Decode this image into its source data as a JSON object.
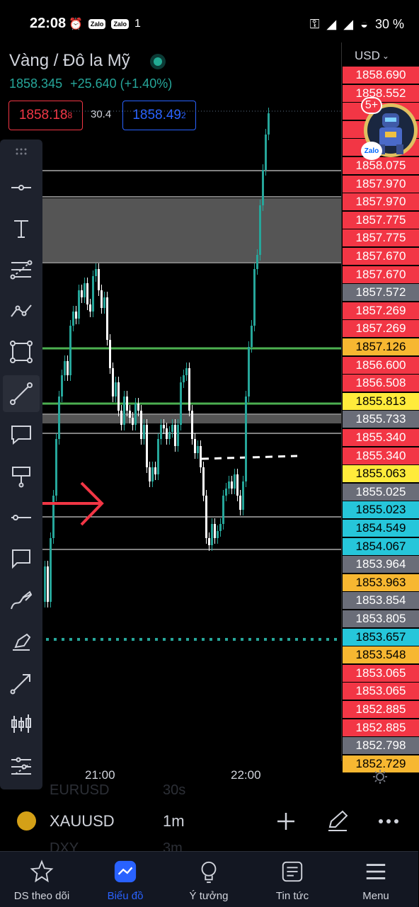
{
  "status_bar": {
    "time": "22:08",
    "extra_icons": [
      "Zalo",
      "Zalo"
    ],
    "signal_digit": "1",
    "battery": "30 %"
  },
  "header": {
    "symbol_name": "Vàng / Đô la Mỹ",
    "last_price": "1858.345",
    "change": "+25.640 (+1.40%)",
    "sell_price": "1858.18",
    "sell_price_sup": "8",
    "spread": "30.4",
    "buy_price": "1858.49",
    "buy_price_sup": "2"
  },
  "price_scale": {
    "currency": "USD",
    "labels": [
      {
        "text": "1858.690",
        "bg": "#f23645",
        "fg": "#ffffff"
      },
      {
        "text": "1858.552",
        "bg": "#f23645",
        "fg": "#ffffff"
      },
      {
        "text": "18",
        "bg": "#f23645",
        "fg": "#ffffff"
      },
      {
        "text": "0",
        "bg": "#f23645",
        "fg": "#ffffff"
      },
      {
        "text": "1",
        "bg": "#f23645",
        "fg": "#ffffff"
      },
      {
        "text": "1858.075",
        "bg": "#f23645",
        "fg": "#ffffff"
      },
      {
        "text": "1857.970",
        "bg": "#f23645",
        "fg": "#ffffff"
      },
      {
        "text": "1857.970",
        "bg": "#f23645",
        "fg": "#ffffff"
      },
      {
        "text": "1857.775",
        "bg": "#f23645",
        "fg": "#ffffff"
      },
      {
        "text": "1857.775",
        "bg": "#f23645",
        "fg": "#ffffff"
      },
      {
        "text": "1857.670",
        "bg": "#f23645",
        "fg": "#ffffff"
      },
      {
        "text": "1857.670",
        "bg": "#f23645",
        "fg": "#ffffff"
      },
      {
        "text": "1857.572",
        "bg": "#6a6d78",
        "fg": "#ffffff"
      },
      {
        "text": "1857.269",
        "bg": "#f23645",
        "fg": "#ffffff"
      },
      {
        "text": "1857.269",
        "bg": "#f23645",
        "fg": "#ffffff"
      },
      {
        "text": "1857.126",
        "bg": "#f7b731",
        "fg": "#000000"
      },
      {
        "text": "1856.600",
        "bg": "#f23645",
        "fg": "#ffffff"
      },
      {
        "text": "1856.508",
        "bg": "#f23645",
        "fg": "#ffffff"
      },
      {
        "text": "1855.813",
        "bg": "#ffeb3b",
        "fg": "#000000"
      },
      {
        "text": "1855.733",
        "bg": "#6a6d78",
        "fg": "#ffffff"
      },
      {
        "text": "1855.340",
        "bg": "#f23645",
        "fg": "#ffffff"
      },
      {
        "text": "1855.340",
        "bg": "#f23645",
        "fg": "#ffffff"
      },
      {
        "text": "1855.063",
        "bg": "#ffeb3b",
        "fg": "#000000"
      },
      {
        "text": "1855.025",
        "bg": "#6a6d78",
        "fg": "#ffffff"
      },
      {
        "text": "1855.023",
        "bg": "#26c6da",
        "fg": "#000000"
      },
      {
        "text": "1854.549",
        "bg": "#26c6da",
        "fg": "#000000"
      },
      {
        "text": "1854.067",
        "bg": "#26c6da",
        "fg": "#000000"
      },
      {
        "text": "1853.964",
        "bg": "#6a6d78",
        "fg": "#ffffff"
      },
      {
        "text": "1853.963",
        "bg": "#f7b731",
        "fg": "#000000"
      },
      {
        "text": "1853.854",
        "bg": "#6a6d78",
        "fg": "#ffffff"
      },
      {
        "text": "1853.805",
        "bg": "#6a6d78",
        "fg": "#ffffff"
      },
      {
        "text": "1853.657",
        "bg": "#26c6da",
        "fg": "#000000"
      },
      {
        "text": "1853.548",
        "bg": "#f7b731",
        "fg": "#000000"
      },
      {
        "text": "1853.065",
        "bg": "#f23645",
        "fg": "#ffffff"
      },
      {
        "text": "1853.065",
        "bg": "#f23645",
        "fg": "#ffffff"
      },
      {
        "text": "1852.885",
        "bg": "#f23645",
        "fg": "#ffffff"
      },
      {
        "text": "1852.885",
        "bg": "#f23645",
        "fg": "#ffffff"
      },
      {
        "text": "1852.798",
        "bg": "#6a6d78",
        "fg": "#ffffff"
      },
      {
        "text": "1852.729",
        "bg": "#f7b731",
        "fg": "#000000"
      }
    ]
  },
  "chat_badge": {
    "count": "5+",
    "app": "Zalo"
  },
  "toolbar_icons": [
    "drag-handle-icon",
    "horizontal-ray-icon",
    "text-tool-icon",
    "fib-retracement-icon",
    "polyline-icon",
    "rectangle-icon",
    "trend-line-icon",
    "callout-icon",
    "signpost-icon",
    "horizontal-line-icon",
    "comment-icon",
    "brush-icon",
    "highlighter-icon",
    "arrow-tool-icon",
    "long-position-icon",
    "measure-tool-icon"
  ],
  "time_axis": {
    "labels": [
      "21:00",
      "22:00"
    ]
  },
  "symbol_bar": {
    "symbol": "XAUUSD",
    "interval": "1m",
    "ghost_top_symbol": "EURUSD",
    "ghost_top_interval": "30s",
    "ghost_bottom_symbol": "DXY",
    "ghost_bottom_interval": "3m"
  },
  "nav": {
    "items": [
      {
        "label": "DS theo dõi"
      },
      {
        "label": "Biểu đồ"
      },
      {
        "label": "Ý tưởng"
      },
      {
        "label": "Tin tức"
      },
      {
        "label": "Menu"
      }
    ]
  },
  "colors": {
    "up": "#26a69a",
    "down": "#ffffff",
    "accent": "#2962ff",
    "sell": "#f23645",
    "green_line": "#4caf50",
    "arrow": "#f23645"
  }
}
